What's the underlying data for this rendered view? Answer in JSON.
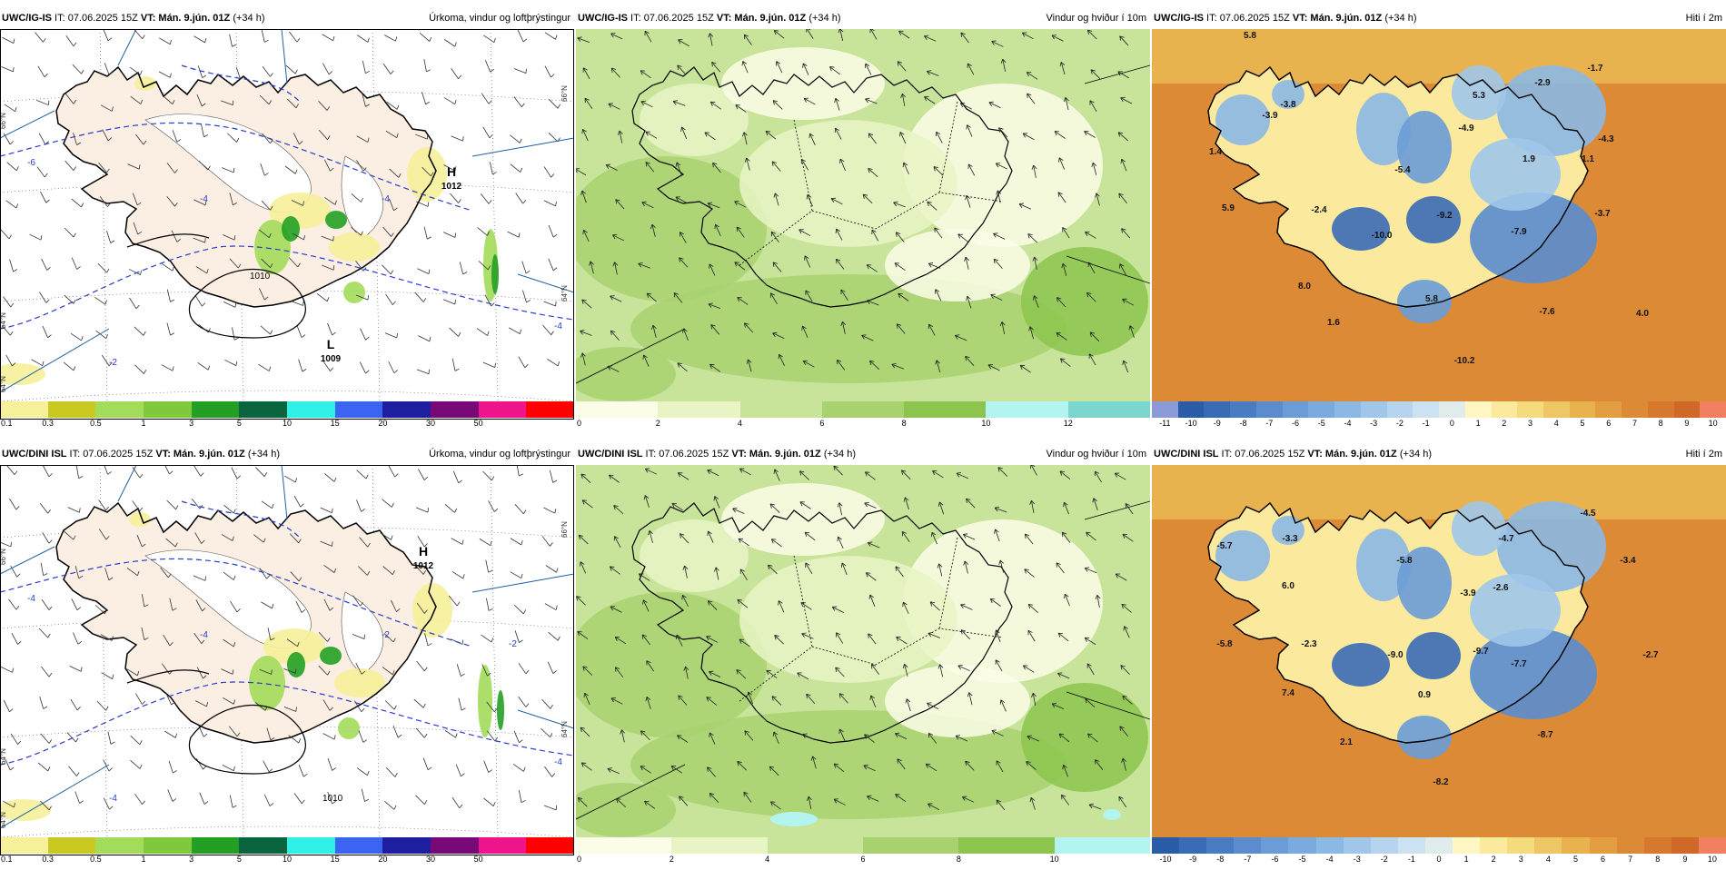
{
  "panels": [
    {
      "id": "p1",
      "model": "UWC/IG-IS",
      "it": " IT: 07.06.2025 15Z ",
      "vt_label": "VT: Mán. 9.jún. 01Z",
      "lead": " (+34 h)",
      "title": "Úrkoma, vindur og loftþrýstingur",
      "type": "precip",
      "pressure": [
        {
          "kind": "H",
          "value": "1012"
        },
        {
          "kind": "L",
          "value": "1009"
        }
      ],
      "isobar_label": "1010",
      "isotherm_labels": [
        "-6",
        "-4",
        "-4",
        "-2",
        "-4"
      ],
      "lat_labels": [
        "66°N",
        "66°N",
        "64°N",
        "64°N",
        "64°N"
      ],
      "legend": [
        "0.1",
        "0.3",
        "0.5",
        "1",
        "3",
        "5",
        "10",
        "15",
        "20",
        "30",
        "50"
      ],
      "legend_colors": [
        "#f6f09a",
        "#c8c820",
        "#a3dc5a",
        "#80c83c",
        "#23a023",
        "#0a6440",
        "#30f0e6",
        "#3c64f0",
        "#1e1ea0",
        "#780a78",
        "#f0148c",
        "#ff0000"
      ]
    },
    {
      "id": "p2",
      "model": "UWC/IG-IS",
      "it": " IT: 07.06.2025 15Z ",
      "vt_label": "VT: Mán. 9.jún. 01Z",
      "lead": " (+34 h)",
      "title": "Vindur og hviður í 10m",
      "type": "wind",
      "legend": [
        "0",
        "2",
        "4",
        "6",
        "8",
        "10",
        "12"
      ],
      "legend_colors": [
        "#fbfde8",
        "#e8f4c4",
        "#c8e49a",
        "#a8d270",
        "#8cc44e",
        "#b4f4f0",
        "#7cd6d0"
      ]
    },
    {
      "id": "p3",
      "model": "UWC/IG-IS",
      "it": " IT: 07.06.2025 15Z ",
      "vt_label": "VT: Mán. 9.jún. 01Z",
      "lead": " (+34 h)",
      "title": "Hiti í 2m",
      "type": "temp",
      "values": [
        "5.8",
        "-1.7",
        "-2.9",
        "-3.8",
        "-3.9",
        "5.3",
        "-4.9",
        "-4.3",
        "1.4",
        "1.9",
        "1.1",
        "-5.4",
        "5.9",
        "-2.4",
        "-10.0",
        "-9.2",
        "-7.9",
        "-3.7",
        "8.0",
        "5.8",
        "-7.6",
        "4.0",
        "1.6",
        "-10.2"
      ],
      "legend": [
        "-11",
        "-10",
        "-9",
        "-8",
        "-7",
        "-6",
        "-5",
        "-4",
        "-3",
        "-2",
        "-1",
        "0",
        "1",
        "2",
        "3",
        "4",
        "5",
        "6",
        "7",
        "8",
        "9",
        "10"
      ],
      "legend_colors": [
        "#8c9ad8",
        "#2a5ca8",
        "#3a6cb6",
        "#4a7cc4",
        "#5a8cce",
        "#6a9cd6",
        "#7aaade",
        "#8cb8e4",
        "#a0c6ea",
        "#b6d4ee",
        "#cce2f0",
        "#e0ecec",
        "#fff6c4",
        "#fbea9e",
        "#f5da7e",
        "#efc664",
        "#e8b24e",
        "#e29e40",
        "#dc8a36",
        "#d6782e",
        "#d06828",
        "#f08060"
      ]
    },
    {
      "id": "p4",
      "model": "UWC/DINI ISL",
      "it": " IT: 07.06.2025 15Z ",
      "vt_label": "VT: Mán. 9.jún. 01Z",
      "lead": " (+34 h)",
      "title": "Úrkoma, vindur og loftþrýstingur",
      "type": "precip",
      "pressure": [
        {
          "kind": "H",
          "value": "1012"
        }
      ],
      "isobar_label": "1010",
      "isotherm_labels": [
        "-4",
        "-4",
        "-2",
        "-4",
        "-4",
        "-2"
      ],
      "lat_labels": [
        "66°N",
        "66°N",
        "64°N",
        "64°N",
        "64°N"
      ],
      "legend": [
        "0.1",
        "0.3",
        "0.5",
        "1",
        "3",
        "5",
        "10",
        "15",
        "20",
        "30",
        "50"
      ],
      "legend_colors": [
        "#f6f09a",
        "#c8c820",
        "#a3dc5a",
        "#80c83c",
        "#23a023",
        "#0a6440",
        "#30f0e6",
        "#3c64f0",
        "#1e1ea0",
        "#780a78",
        "#f0148c",
        "#ff0000"
      ]
    },
    {
      "id": "p5",
      "model": "UWC/DINI ISL",
      "it": " IT: 07.06.2025 15Z ",
      "vt_label": "VT: Mán. 9.jún. 01Z",
      "lead": " (+34 h)",
      "title": "Vindur og hviður í 10m",
      "type": "wind",
      "legend": [
        "0",
        "2",
        "4",
        "6",
        "8",
        "10"
      ],
      "legend_colors": [
        "#fbfde8",
        "#e8f4c4",
        "#c8e49a",
        "#a8d270",
        "#8cc44e",
        "#b4f4f0",
        "#7cd6d0"
      ]
    },
    {
      "id": "p6",
      "model": "UWC/DINI ISL",
      "it": " IT: 07.06.2025 15Z ",
      "vt_label": "VT: Mán. 9.jún. 01Z",
      "lead": " (+34 h)",
      "title": "Hiti í 2m",
      "type": "temp",
      "values": [
        "-4.5",
        "-5.7",
        "-3.3",
        "-5.8",
        "-4.7",
        "-3.4",
        "6.0",
        "-3.9",
        "-2.6",
        "-5.8",
        "-2.3",
        "-9.0",
        "-9.7",
        "-7.7",
        "-2.7",
        "7.4",
        "0.9",
        "-8.7",
        "2.1",
        "-8.2"
      ],
      "legend": [
        "-10",
        "-9",
        "-8",
        "-7",
        "-6",
        "-5",
        "-4",
        "-3",
        "-2",
        "-1",
        "0",
        "1",
        "2",
        "3",
        "4",
        "5",
        "6",
        "7",
        "8",
        "9",
        "10"
      ],
      "legend_colors": [
        "#2a5ca8",
        "#3a6cb6",
        "#4a7cc4",
        "#5a8cce",
        "#6a9cd6",
        "#7aaade",
        "#8cb8e4",
        "#a0c6ea",
        "#b6d4ee",
        "#cce2f0",
        "#e0ecec",
        "#fff6c4",
        "#fbea9e",
        "#f5da7e",
        "#efc664",
        "#e8b24e",
        "#e29e40",
        "#dc8a36",
        "#d6782e",
        "#d06828",
        "#f08060"
      ]
    }
  ]
}
